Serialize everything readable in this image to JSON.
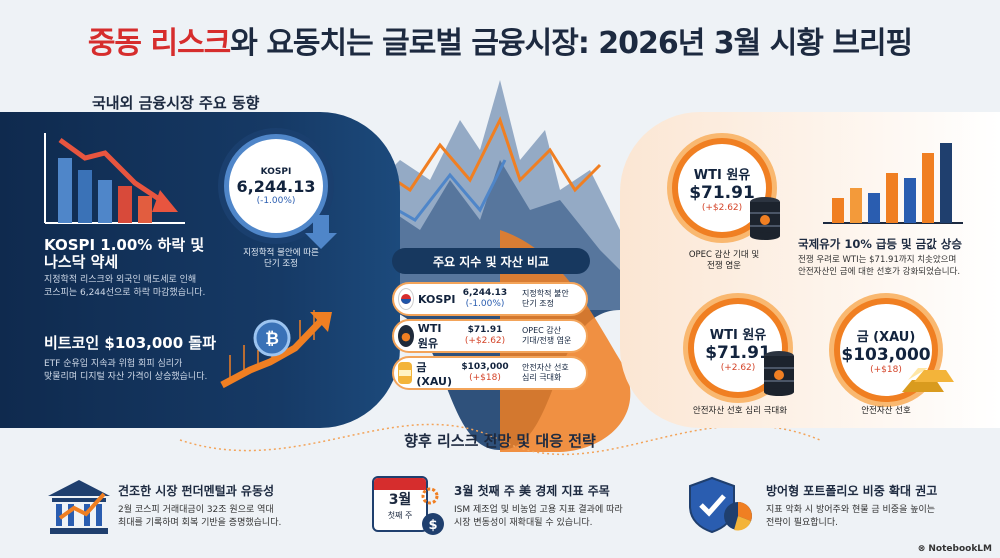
{
  "title": {
    "part_red": "중동 리스크",
    "part_dark": "와 요동치는 글로벌 금융시장: 2026년 3월 시황 브리핑"
  },
  "section_domestic": "국내외 금융시장 주요 동향",
  "left": {
    "kospi_head_1": "KOSPI 1.00% 하락 및",
    "kospi_head_2": "나스닥 약세",
    "kospi_sub_1": "지정학적 리스크와 외국인 매도세로 인해",
    "kospi_sub_2": "코스피는 6,244선으로 하락 마감했습니다.",
    "btc_head": "비트코인 $103,000 돌파",
    "btc_sub_1": "ETF 순유입 지속과 위험 회피 심리가",
    "btc_sub_2": "맞물리며 디지털 자산 가격이 상승했습니다."
  },
  "kospi_circle": {
    "name": "KOSPI",
    "value": "6,244.13",
    "delta": "(-1.00%)",
    "caption_1": "지정학적 불안에 따른",
    "caption_2": "단기 조정"
  },
  "compare": {
    "header": "주요 지수 및 자산 비교",
    "rows": [
      {
        "name": "KOSPI",
        "value": "6,244.13",
        "delta": "(-1.00%)",
        "note_1": "지정학적 불안",
        "note_2": "단기 조정"
      },
      {
        "name": "WTI 원유",
        "value": "$71.91",
        "delta": "(+$2.62)",
        "note_1": "OPEC 감산",
        "note_2": "기대/전쟁 염운"
      },
      {
        "name": "금 (XAU)",
        "value": "$103,000",
        "delta": "(+$18)",
        "note_1": "안전자산 선호",
        "note_2": "심리 극대화"
      }
    ]
  },
  "wti_top": {
    "name": "WTI 원유",
    "value": "$71.91",
    "delta": "(+$2.62)",
    "caption_1": "OPEC 감산 기대 및",
    "caption_2": "전쟁 염운"
  },
  "oil_news": {
    "head": "국제유가 10% 급등 및 금값 상승",
    "sub_1": "전쟁 우려로 WTI는 $71.91까지 치솟았으며",
    "sub_2": "안전자산인 금에 대한 선호가 강화되었습니다."
  },
  "wti_bottom": {
    "name": "WTI 원유",
    "value": "$71.91",
    "delta": "(+2.62)",
    "caption": "안전자산 선호 심리 극대화"
  },
  "gold": {
    "name": "금 (XAU)",
    "value": "$103,000",
    "delta": "(+$18)",
    "caption": "안전자산 선호"
  },
  "outlook": {
    "title": "향후 리스크 전망 및 대응 전략",
    "items": [
      {
        "head": "견조한 시장 펀더멘털과 유동성",
        "sub_1": "2월 코스피 거래대금이 32조 원으로 역대",
        "sub_2": "최대를 기록하며 회복 기반을 증명했습니다."
      },
      {
        "head": "3월 첫째 주 美 경제 지표 주목",
        "sub_1": "ISM 제조업 및 비농업 고용 지표 결과에 따라",
        "sub_2": "시장 변동성이 재확대될 수 있습니다.",
        "cal_1": "3월",
        "cal_2": "첫째 주"
      },
      {
        "head": "방어형 포트폴리오 비중 확대 권고",
        "sub_1": "지표 악화 시 방어주와 현물 금 비중을 높이는",
        "sub_2": "전략이 필요합니다."
      }
    ]
  },
  "brand": "NotebookLM",
  "colors": {
    "accent_red": "#d62d2d",
    "navy": "#17385f",
    "orange": "#f07f22",
    "blue": "#4f86c9"
  }
}
